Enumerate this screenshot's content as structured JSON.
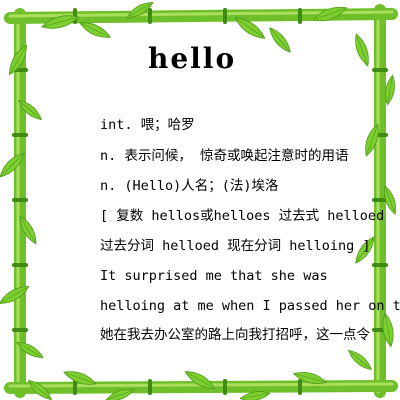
{
  "entry": {
    "headword": "hello",
    "definitions": [
      "int. 喂；哈罗",
      "n. 表示问候， 惊奇或唤起注意时的用语",
      "n. (Hello)人名；(法)埃洛"
    ],
    "inflections": [
      "[ 复数 hellos或helloes 过去式 helloed 过去分词 helloed 现在分词 helloing ]"
    ],
    "example": {
      "english": "It surprised me that she was helloing at me when I passed her on the",
      "chinese": "她在我去办公室的路上向我打招呼，这一点令"
    }
  },
  "frame": {
    "style": "bamboo",
    "stalk_color": "#6fbf2a",
    "stalk_highlight": "#b9e86a",
    "node_color": "#3f8a12",
    "leaf_color": "#7ccf2e",
    "leaf_dark": "#4d9a1a"
  }
}
